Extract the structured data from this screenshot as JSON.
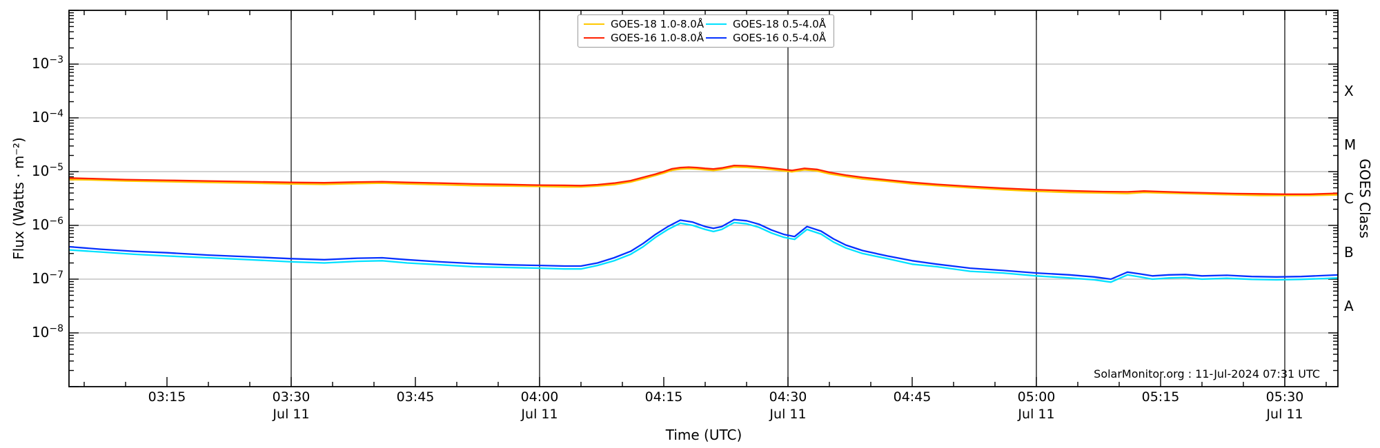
{
  "watermark": "SolarMonitor.org : 11-Jul-2024 07:31 UTC",
  "legend": {
    "items": [
      {
        "label": "GOES-18 1.0-8.0Å",
        "color": "#ffc800"
      },
      {
        "label": "GOES-16 1.0-8.0Å",
        "color": "#ff2000"
      },
      {
        "label": "GOES-18 0.5-4.0Å",
        "color": "#00e1ff"
      },
      {
        "label": "GOES-16 0.5-4.0Å",
        "color": "#0431ff"
      }
    ]
  },
  "chart_data": {
    "type": "line",
    "xlabel": "Time (UTC)",
    "ylabel_left": "Flux (Watts · m⁻²)",
    "ylabel_right": "GOES Class",
    "x_range_minutes": [
      183.2,
      336.5
    ],
    "y_log_range_exp": [
      -9,
      -2
    ],
    "grid": {
      "horizontal": "light-gray at each decade",
      "vertical": "black at :00 and :30"
    },
    "x_ticks": [
      {
        "t": 195,
        "label": "03:15"
      },
      {
        "t": 210,
        "label": "03:30",
        "sub": "Jul 11"
      },
      {
        "t": 225,
        "label": "03:45"
      },
      {
        "t": 240,
        "label": "04:00",
        "sub": "Jul 11"
      },
      {
        "t": 255,
        "label": "04:15"
      },
      {
        "t": 270,
        "label": "04:30",
        "sub": "Jul 11"
      },
      {
        "t": 285,
        "label": "04:45"
      },
      {
        "t": 300,
        "label": "05:00",
        "sub": "Jul 11"
      },
      {
        "t": 315,
        "label": "05:15"
      },
      {
        "t": 330,
        "label": "05:30",
        "sub": "Jul 11"
      }
    ],
    "x_minor_step_min": 5,
    "y_ticks": [
      {
        "exp": -3,
        "base": "10",
        "sup": "−3"
      },
      {
        "exp": -4,
        "base": "10",
        "sup": "−4"
      },
      {
        "exp": -5,
        "base": "10",
        "sup": "−5"
      },
      {
        "exp": -6,
        "base": "10",
        "sup": "−6"
      },
      {
        "exp": -7,
        "base": "10",
        "sup": "−7"
      },
      {
        "exp": -8,
        "base": "10",
        "sup": "−8"
      }
    ],
    "goes_class_labels": [
      {
        "label": "X",
        "center_exp": -3.5
      },
      {
        "label": "M",
        "center_exp": -4.5
      },
      {
        "label": "C",
        "center_exp": -5.5
      },
      {
        "label": "B",
        "center_exp": -6.5
      },
      {
        "label": "A",
        "center_exp": -7.5
      }
    ],
    "series": [
      {
        "name": "GOES-18 0.5-4.0Å",
        "color": "#00e1ff",
        "width": 2.3,
        "points": [
          [
            183.2,
            3.5e-07
          ],
          [
            187,
            3.2e-07
          ],
          [
            191,
            2.9e-07
          ],
          [
            195,
            2.7e-07
          ],
          [
            200,
            2.5e-07
          ],
          [
            205,
            2.3e-07
          ],
          [
            210,
            2.1e-07
          ],
          [
            214,
            2e-07
          ],
          [
            218,
            2.15e-07
          ],
          [
            221,
            2.2e-07
          ],
          [
            224,
            2e-07
          ],
          [
            228,
            1.85e-07
          ],
          [
            232,
            1.7e-07
          ],
          [
            236,
            1.65e-07
          ],
          [
            240,
            1.6e-07
          ],
          [
            243,
            1.55e-07
          ],
          [
            245,
            1.55e-07
          ],
          [
            247,
            1.8e-07
          ],
          [
            249,
            2.2e-07
          ],
          [
            251,
            2.9e-07
          ],
          [
            252.5,
            4e-07
          ],
          [
            254,
            6e-07
          ],
          [
            255.5,
            8.4e-07
          ],
          [
            257,
            1.1e-06
          ],
          [
            258.5,
            1e-06
          ],
          [
            260,
            8.4e-07
          ],
          [
            261,
            7.7e-07
          ],
          [
            262,
            8.4e-07
          ],
          [
            263.5,
            1.13e-06
          ],
          [
            265,
            1.07e-06
          ],
          [
            266.5,
            9.2e-07
          ],
          [
            268,
            7.2e-07
          ],
          [
            269.5,
            6e-07
          ],
          [
            270.8,
            5.5e-07
          ],
          [
            272.3,
            8.4e-07
          ],
          [
            274,
            6.9e-07
          ],
          [
            275.5,
            4.9e-07
          ],
          [
            277,
            3.8e-07
          ],
          [
            279,
            3e-07
          ],
          [
            282,
            2.4e-07
          ],
          [
            285,
            1.9e-07
          ],
          [
            288,
            1.7e-07
          ],
          [
            292,
            1.4e-07
          ],
          [
            296,
            1.3e-07
          ],
          [
            300,
            1.15e-07
          ],
          [
            304,
            1.05e-07
          ],
          [
            307,
            9.7e-08
          ],
          [
            309,
            8.8e-08
          ],
          [
            311,
            1.2e-07
          ],
          [
            312.5,
            1.1e-07
          ],
          [
            314,
            1e-07
          ],
          [
            316,
            1.05e-07
          ],
          [
            318,
            1.07e-07
          ],
          [
            320,
            1e-07
          ],
          [
            323,
            1.04e-07
          ],
          [
            326,
            9.9e-08
          ],
          [
            329,
            9.7e-08
          ],
          [
            332,
            9.9e-08
          ],
          [
            336.5,
            1.05e-07
          ]
        ]
      },
      {
        "name": "GOES-18 1.0-8.0Å",
        "color": "#ffc800",
        "width": 2.3,
        "points": [
          [
            183.2,
            7.1e-06
          ],
          [
            186,
            7e-06
          ],
          [
            190,
            6.7e-06
          ],
          [
            195,
            6.5e-06
          ],
          [
            200,
            6.3e-06
          ],
          [
            205,
            6.1e-06
          ],
          [
            210,
            5.9e-06
          ],
          [
            214,
            5.8e-06
          ],
          [
            218,
            6e-06
          ],
          [
            221,
            6.1e-06
          ],
          [
            224,
            5.9e-06
          ],
          [
            228,
            5.7e-06
          ],
          [
            232,
            5.5e-06
          ],
          [
            236,
            5.4e-06
          ],
          [
            240,
            5.3e-06
          ],
          [
            243,
            5.2e-06
          ],
          [
            245,
            5.2e-06
          ],
          [
            247,
            5.4e-06
          ],
          [
            249,
            5.7e-06
          ],
          [
            251,
            6.4e-06
          ],
          [
            253,
            7.7e-06
          ],
          [
            254,
            8.5e-06
          ],
          [
            255,
            9.4e-06
          ],
          [
            256,
            1.06e-05
          ],
          [
            257,
            1.12e-05
          ],
          [
            258,
            1.14e-05
          ],
          [
            259,
            1.12e-05
          ],
          [
            260,
            1.08e-05
          ],
          [
            261,
            1.05e-05
          ],
          [
            262,
            1.1e-05
          ],
          [
            263.5,
            1.22e-05
          ],
          [
            265,
            1.2e-05
          ],
          [
            267,
            1.14e-05
          ],
          [
            269,
            1.05e-05
          ],
          [
            270.5,
            9.9e-06
          ],
          [
            272,
            1.08e-05
          ],
          [
            273.5,
            1.03e-05
          ],
          [
            275,
            9.1e-06
          ],
          [
            277,
            8.1e-06
          ],
          [
            279,
            7.3e-06
          ],
          [
            282,
            6.6e-06
          ],
          [
            285,
            5.9e-06
          ],
          [
            288,
            5.5e-06
          ],
          [
            292,
            5e-06
          ],
          [
            296,
            4.6e-06
          ],
          [
            300,
            4.3e-06
          ],
          [
            304,
            4.1e-06
          ],
          [
            308,
            4e-06
          ],
          [
            311,
            3.9e-06
          ],
          [
            313,
            4.1e-06
          ],
          [
            315,
            4e-06
          ],
          [
            318,
            3.9e-06
          ],
          [
            321,
            3.8e-06
          ],
          [
            324,
            3.7e-06
          ],
          [
            327,
            3.6e-06
          ],
          [
            330,
            3.6e-06
          ],
          [
            333,
            3.6e-06
          ],
          [
            336.5,
            3.7e-06
          ]
        ]
      },
      {
        "name": "GOES-16 0.5-4.0Å",
        "color": "#0431ff",
        "width": 2.3,
        "points": [
          [
            183.2,
            4e-07
          ],
          [
            187,
            3.6e-07
          ],
          [
            191,
            3.3e-07
          ],
          [
            195,
            3.1e-07
          ],
          [
            200,
            2.8e-07
          ],
          [
            205,
            2.6e-07
          ],
          [
            210,
            2.4e-07
          ],
          [
            214,
            2.3e-07
          ],
          [
            218,
            2.45e-07
          ],
          [
            221,
            2.5e-07
          ],
          [
            224,
            2.3e-07
          ],
          [
            228,
            2.1e-07
          ],
          [
            232,
            1.95e-07
          ],
          [
            236,
            1.85e-07
          ],
          [
            240,
            1.8e-07
          ],
          [
            243,
            1.75e-07
          ],
          [
            245,
            1.75e-07
          ],
          [
            247,
            2e-07
          ],
          [
            249,
            2.5e-07
          ],
          [
            251,
            3.3e-07
          ],
          [
            252.5,
            4.6e-07
          ],
          [
            254,
            6.8e-07
          ],
          [
            255.5,
            9.5e-07
          ],
          [
            257,
            1.25e-06
          ],
          [
            258.5,
            1.15e-06
          ],
          [
            260,
            9.5e-07
          ],
          [
            261,
            8.8e-07
          ],
          [
            262,
            9.5e-07
          ],
          [
            263.5,
            1.28e-06
          ],
          [
            265,
            1.22e-06
          ],
          [
            266.5,
            1.05e-06
          ],
          [
            268,
            8.2e-07
          ],
          [
            269.5,
            6.8e-07
          ],
          [
            270.8,
            6.2e-07
          ],
          [
            272.3,
            9.5e-07
          ],
          [
            274,
            7.8e-07
          ],
          [
            275.5,
            5.6e-07
          ],
          [
            277,
            4.3e-07
          ],
          [
            279,
            3.4e-07
          ],
          [
            282,
            2.7e-07
          ],
          [
            285,
            2.2e-07
          ],
          [
            288,
            1.9e-07
          ],
          [
            292,
            1.6e-07
          ],
          [
            296,
            1.45e-07
          ],
          [
            300,
            1.3e-07
          ],
          [
            304,
            1.2e-07
          ],
          [
            307,
            1.1e-07
          ],
          [
            309,
            1e-07
          ],
          [
            311,
            1.35e-07
          ],
          [
            312.5,
            1.25e-07
          ],
          [
            314,
            1.15e-07
          ],
          [
            316,
            1.2e-07
          ],
          [
            318,
            1.22e-07
          ],
          [
            320,
            1.15e-07
          ],
          [
            323,
            1.18e-07
          ],
          [
            326,
            1.12e-07
          ],
          [
            329,
            1.1e-07
          ],
          [
            332,
            1.12e-07
          ],
          [
            336.5,
            1.2e-07
          ]
        ]
      },
      {
        "name": "GOES-16 1.0-8.0Å",
        "color": "#ff2000",
        "width": 2.3,
        "points": [
          [
            183.2,
            7.6e-06
          ],
          [
            186,
            7.4e-06
          ],
          [
            190,
            7.1e-06
          ],
          [
            195,
            6.9e-06
          ],
          [
            200,
            6.7e-06
          ],
          [
            205,
            6.5e-06
          ],
          [
            210,
            6.3e-06
          ],
          [
            214,
            6.2e-06
          ],
          [
            218,
            6.4e-06
          ],
          [
            221,
            6.5e-06
          ],
          [
            224,
            6.3e-06
          ],
          [
            228,
            6.1e-06
          ],
          [
            232,
            5.9e-06
          ],
          [
            236,
            5.75e-06
          ],
          [
            240,
            5.6e-06
          ],
          [
            243,
            5.55e-06
          ],
          [
            245,
            5.5e-06
          ],
          [
            247,
            5.7e-06
          ],
          [
            249,
            6.1e-06
          ],
          [
            251,
            6.8e-06
          ],
          [
            253,
            8.2e-06
          ],
          [
            254,
            9e-06
          ],
          [
            255,
            1e-05
          ],
          [
            256,
            1.13e-05
          ],
          [
            257,
            1.19e-05
          ],
          [
            258,
            1.21e-05
          ],
          [
            259,
            1.19e-05
          ],
          [
            260,
            1.15e-05
          ],
          [
            261,
            1.12e-05
          ],
          [
            262,
            1.17e-05
          ],
          [
            263.5,
            1.3e-05
          ],
          [
            265,
            1.28e-05
          ],
          [
            267,
            1.21e-05
          ],
          [
            269,
            1.12e-05
          ],
          [
            270.5,
            1.05e-05
          ],
          [
            272,
            1.15e-05
          ],
          [
            273.5,
            1.1e-05
          ],
          [
            275,
            9.7e-06
          ],
          [
            277,
            8.6e-06
          ],
          [
            279,
            7.8e-06
          ],
          [
            282,
            7e-06
          ],
          [
            285,
            6.3e-06
          ],
          [
            288,
            5.8e-06
          ],
          [
            292,
            5.3e-06
          ],
          [
            296,
            4.9e-06
          ],
          [
            300,
            4.6e-06
          ],
          [
            304,
            4.4e-06
          ],
          [
            308,
            4.25e-06
          ],
          [
            311,
            4.2e-06
          ],
          [
            313,
            4.35e-06
          ],
          [
            315,
            4.25e-06
          ],
          [
            318,
            4.1e-06
          ],
          [
            321,
            4e-06
          ],
          [
            324,
            3.9e-06
          ],
          [
            327,
            3.85e-06
          ],
          [
            330,
            3.8e-06
          ],
          [
            333,
            3.8e-06
          ],
          [
            336.5,
            3.95e-06
          ]
        ]
      }
    ]
  }
}
